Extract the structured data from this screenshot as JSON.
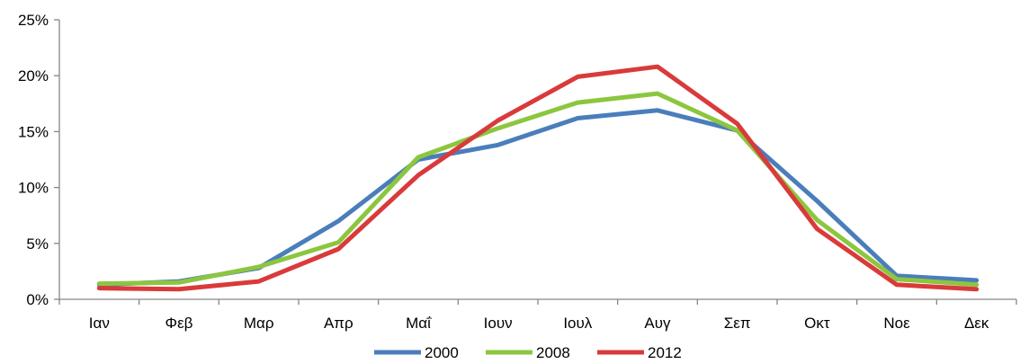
{
  "chart_data": {
    "type": "line",
    "categories": [
      "Ιαν",
      "Φεβ",
      "Μαρ",
      "Απρ",
      "Μαΐ",
      "Ιουν",
      "Ιουλ",
      "Αυγ",
      "Σεπ",
      "Οκτ",
      "Νοε",
      "Δεκ"
    ],
    "series": [
      {
        "name": "2000",
        "color": "#4a7ebb",
        "values": [
          1.3,
          1.6,
          2.8,
          7.0,
          12.5,
          13.8,
          16.2,
          16.9,
          15.1,
          8.8,
          2.1,
          1.7
        ]
      },
      {
        "name": "2008",
        "color": "#8cc63f",
        "values": [
          1.4,
          1.5,
          2.9,
          5.1,
          12.7,
          15.3,
          17.6,
          18.4,
          15.1,
          7.1,
          1.8,
          1.3
        ]
      },
      {
        "name": "2012",
        "color": "#d93a3a",
        "values": [
          1.0,
          0.9,
          1.6,
          4.5,
          11.1,
          16.0,
          19.9,
          20.8,
          15.7,
          6.3,
          1.3,
          0.9
        ]
      }
    ],
    "y_ticks": [
      "0%",
      "5%",
      "10%",
      "15%",
      "20%",
      "25%"
    ],
    "ylim": [
      0,
      25
    ],
    "grid": false,
    "legend_position": "bottom",
    "title": "",
    "xlabel": "",
    "ylabel": ""
  }
}
